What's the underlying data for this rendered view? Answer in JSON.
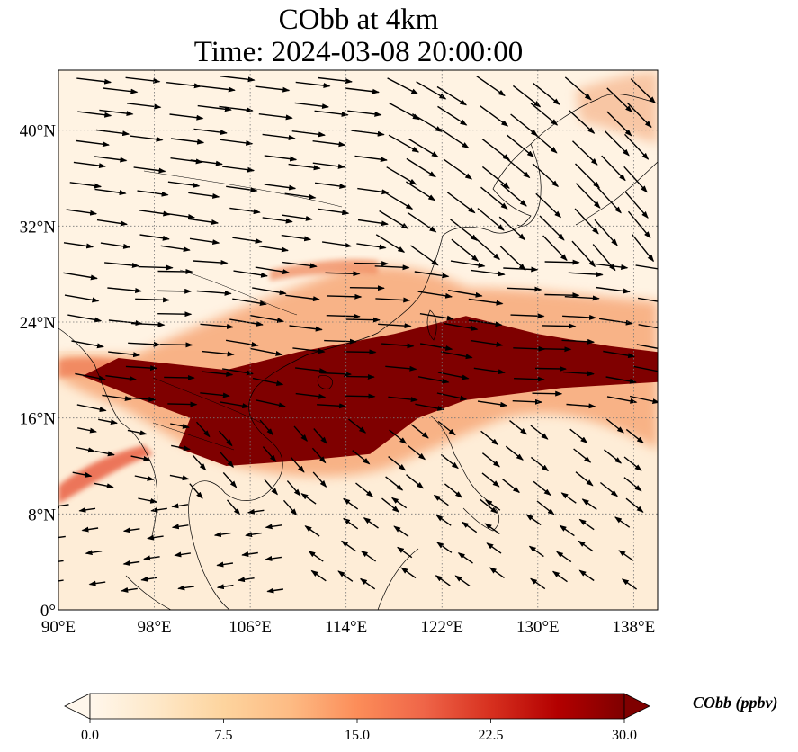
{
  "title": {
    "line1": "CObb at 4km",
    "line2": "Time: 2024-03-08 20:00:00"
  },
  "map": {
    "lon_range": [
      90,
      140
    ],
    "lat_range": [
      0,
      45
    ],
    "x_ticks": [
      "90°E",
      "98°E",
      "106°E",
      "114°E",
      "122°E",
      "130°E",
      "138°E"
    ],
    "x_tick_values": [
      90,
      98,
      106,
      114,
      122,
      130,
      138
    ],
    "y_ticks": [
      "0°",
      "8°N",
      "16°N",
      "24°N",
      "32°N",
      "40°N"
    ],
    "y_tick_values": [
      0,
      8,
      16,
      24,
      32,
      40
    ],
    "grid": "dotted",
    "colormap": "OrRd"
  },
  "colorbar": {
    "title": "CObb (ppbv)",
    "ticks": [
      "0.0",
      "7.5",
      "15.0",
      "22.5",
      "30.0"
    ],
    "tick_values": [
      0,
      7.5,
      15,
      22.5,
      30
    ],
    "range": [
      0,
      30
    ],
    "extend": "both",
    "colors": [
      "#fff7ec",
      "#fee8c8",
      "#fdd49e",
      "#fdbb84",
      "#fc8d59",
      "#ef6548",
      "#d7301f",
      "#b30000",
      "#7f0000"
    ]
  },
  "plume": {
    "description_free": true,
    "main_core": [
      [
        104,
        20
      ],
      [
        110,
        21.5
      ],
      [
        118,
        23
      ],
      [
        124,
        24.5
      ],
      [
        130,
        23
      ],
      [
        136,
        22
      ],
      [
        140,
        21.5
      ],
      [
        140,
        19
      ],
      [
        132,
        18.5
      ],
      [
        124,
        17.5
      ],
      [
        120,
        16
      ],
      [
        116,
        13
      ],
      [
        111,
        12.5
      ],
      [
        104,
        12
      ],
      [
        100,
        13.5
      ],
      [
        101,
        16
      ],
      [
        97,
        17.5
      ],
      [
        92,
        19.5
      ],
      [
        95,
        21
      ]
    ]
  }
}
